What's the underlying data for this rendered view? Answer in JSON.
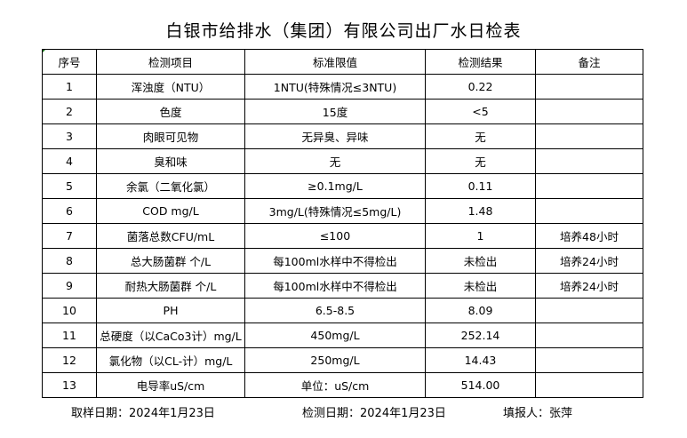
{
  "title": "白银市给排水（集团）有限公司出厂水日检表",
  "headers": [
    "序号",
    "检测项目",
    "标准限值",
    "检测结果",
    "备注"
  ],
  "rows": [
    [
      "1",
      "浑浊度（NTU）",
      "1NTU(特殊情况≤3NTU)",
      "0.22",
      ""
    ],
    [
      "2",
      "色度",
      "15度",
      "<5",
      ""
    ],
    [
      "3",
      "肉眼可见物",
      "无异臭、异味",
      "无",
      ""
    ],
    [
      "4",
      "臭和味",
      "无",
      "无",
      ""
    ],
    [
      "5",
      "余氯（二氧化氯）",
      "≥0.1mg/L",
      "0.11",
      ""
    ],
    [
      "6",
      "COD        mg/L",
      "3mg/L(特殊情况≤5mg/L)",
      "1.48",
      ""
    ],
    [
      "7",
      "菌落总数CFU/mL",
      "≤100",
      "1",
      "培养48小时"
    ],
    [
      "8",
      "总大肠菌群 个/L",
      "每100ml水样中不得检出",
      "未检出",
      "培养24小时"
    ],
    [
      "9",
      "耐热大肠菌群 个/L",
      "每100ml水样中不得检出",
      "未检出",
      "培养24小时"
    ],
    [
      "10",
      "PH",
      "6.5-8.5",
      "8.09",
      ""
    ],
    [
      "11",
      "总硬度（以CaCo3计）mg/L",
      "450mg/L",
      "252.14",
      ""
    ],
    [
      "12",
      "氯化物（以CL-计）mg/L",
      "250mg/L",
      "14.43",
      ""
    ],
    [
      "13",
      "电导率uS/cm",
      "单位：uS/cm",
      "514.00",
      ""
    ]
  ],
  "footer": {
    "sample_date": "取样日期：2024年1月23日",
    "test_date": "检测日期：2024年1月23日",
    "reporter": "填报人：张萍"
  }
}
